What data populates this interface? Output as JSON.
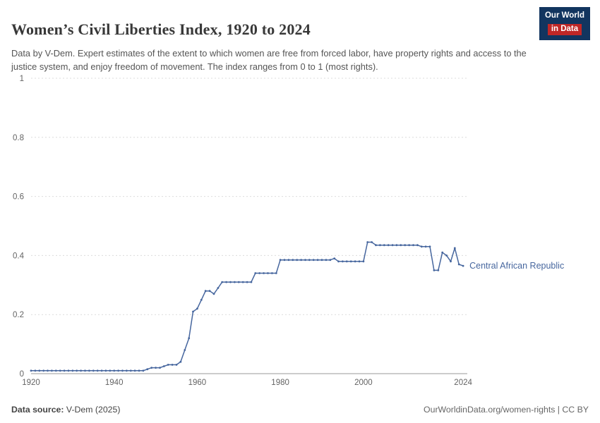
{
  "logo": {
    "line1": "Our World",
    "line2": "in Data",
    "bg": "#12355f",
    "accent": "#bf2726"
  },
  "header": {
    "title": "Women’s Civil Liberties Index, 1920 to 2024",
    "subtitle": "Data by V-Dem. Expert estimates of the extent to which women are free from forced labor, have property rights and access to the justice system, and enjoy freedom of movement. The index ranges from 0 to 1 (most rights)."
  },
  "footer": {
    "source_label": "Data source:",
    "source_value": " V-Dem (2025)",
    "right": "OurWorldinData.org/women-rights | CC BY"
  },
  "chart_data": {
    "type": "line",
    "title": "Women’s Civil Liberties Index, 1920 to 2024",
    "xlabel": "",
    "ylabel": "",
    "xlim": [
      1920,
      2025
    ],
    "ylim": [
      0,
      1
    ],
    "xticks": [
      1920,
      1940,
      1960,
      1980,
      2000,
      2024
    ],
    "yticks": [
      0,
      0.2,
      0.4,
      0.6,
      0.8,
      1
    ],
    "grid": true,
    "x_start": 1920,
    "x_step": 1,
    "series": [
      {
        "name": "Central African Republic",
        "color": "#46669e",
        "values": [
          0.01,
          0.01,
          0.01,
          0.01,
          0.01,
          0.01,
          0.01,
          0.01,
          0.01,
          0.01,
          0.01,
          0.01,
          0.01,
          0.01,
          0.01,
          0.01,
          0.01,
          0.01,
          0.01,
          0.01,
          0.01,
          0.01,
          0.01,
          0.01,
          0.01,
          0.01,
          0.01,
          0.01,
          0.015,
          0.02,
          0.02,
          0.02,
          0.025,
          0.03,
          0.03,
          0.03,
          0.04,
          0.08,
          0.12,
          0.21,
          0.22,
          0.25,
          0.28,
          0.28,
          0.27,
          0.29,
          0.31,
          0.31,
          0.31,
          0.31,
          0.31,
          0.31,
          0.31,
          0.31,
          0.34,
          0.34,
          0.34,
          0.34,
          0.34,
          0.34,
          0.385,
          0.385,
          0.385,
          0.385,
          0.385,
          0.385,
          0.385,
          0.385,
          0.385,
          0.385,
          0.385,
          0.385,
          0.385,
          0.39,
          0.38,
          0.38,
          0.38,
          0.38,
          0.38,
          0.38,
          0.38,
          0.445,
          0.445,
          0.435,
          0.435,
          0.435,
          0.435,
          0.435,
          0.435,
          0.435,
          0.435,
          0.435,
          0.435,
          0.435,
          0.43,
          0.43,
          0.43,
          0.35,
          0.35,
          0.41,
          0.4,
          0.38,
          0.425,
          0.37,
          0.365
        ]
      }
    ]
  }
}
